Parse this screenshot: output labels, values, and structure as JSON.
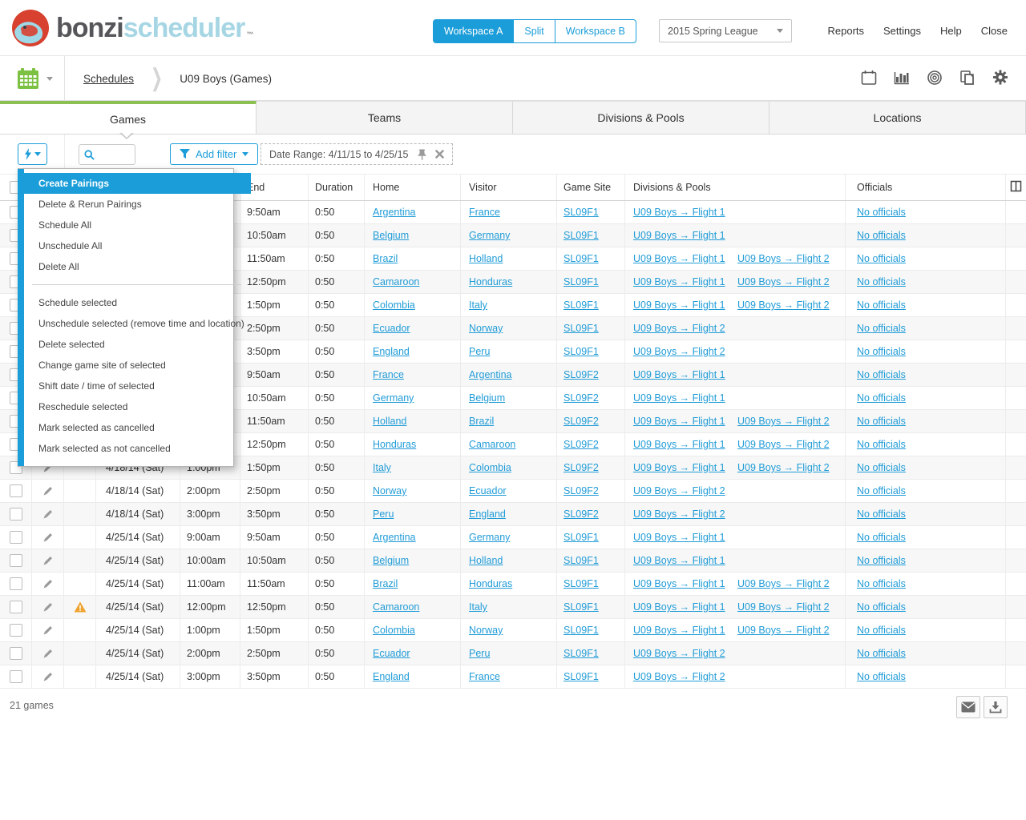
{
  "topbar": {
    "brand": {
      "dark": "bonzi",
      "light": "scheduler",
      "tm": "™"
    },
    "workspace": {
      "a": "Workspace A",
      "split": "Split",
      "b": "Workspace B",
      "active": "Workspace A"
    },
    "league": {
      "value": "2015 Spring League"
    },
    "nav": [
      "Reports",
      "Settings",
      "Help",
      "Close"
    ]
  },
  "toolbar": {
    "breadcrumb": [
      "Schedules",
      "U09 Boys (Games)"
    ]
  },
  "tabs": {
    "items": [
      "Games",
      "Teams",
      "Divisions & Pools",
      "Locations"
    ],
    "active": "Games"
  },
  "filterbar": {
    "search_value": "",
    "add_filter_label": "Add filter",
    "date_range_label": "Date Range: 4/11/15 to 4/25/15"
  },
  "menu": {
    "items": [
      {
        "label": "Create Pairings",
        "highlighted": true
      },
      {
        "label": "Delete & Rerun Pairings"
      },
      {
        "label": "Schedule All"
      },
      {
        "label": "Unschedule All"
      },
      {
        "label": "Delete All"
      },
      {
        "divider": true
      },
      {
        "label": "Schedule selected"
      },
      {
        "label": "Unschedule selected (remove time and location)"
      },
      {
        "label": "Delete selected"
      },
      {
        "label": "Change game site of selected"
      },
      {
        "label": "Shift date / time of selected"
      },
      {
        "label": "Reschedule selected"
      },
      {
        "label": "Mark selected as cancelled"
      },
      {
        "label": "Mark selected as not cancelled"
      }
    ]
  },
  "table": {
    "headers": {
      "date": "",
      "start": "",
      "end": "End",
      "duration": "Duration",
      "home": "Home",
      "visitor": "Visitor",
      "site": "Game Site",
      "divisions": "Divisions & Pools",
      "officials": "Officials"
    },
    "rows": [
      {
        "date": "",
        "start": "",
        "end": "9:50am",
        "duration": "0:50",
        "home": "Argentina",
        "visitor": "France",
        "site": "SL09F1",
        "div1": "U09 Boys → Flight 1",
        "div2": "",
        "officials": "No officials",
        "warning": false
      },
      {
        "date": "",
        "start": "",
        "end": "10:50am",
        "duration": "0:50",
        "home": "Belgium",
        "visitor": "Germany",
        "site": "SL09F1",
        "div1": "U09 Boys → Flight 1",
        "div2": "",
        "officials": "No officials",
        "warning": false
      },
      {
        "date": "",
        "start": "",
        "end": "11:50am",
        "duration": "0:50",
        "home": "Brazil",
        "visitor": "Holland",
        "site": "SL09F1",
        "div1": "U09 Boys → Flight 1",
        "div2": "U09 Boys → Flight 2",
        "officials": "No officials",
        "warning": false
      },
      {
        "date": "",
        "start": "",
        "end": "12:50pm",
        "duration": "0:50",
        "home": "Camaroon",
        "visitor": "Honduras",
        "site": "SL09F1",
        "div1": "U09 Boys → Flight 1",
        "div2": "U09 Boys → Flight 2",
        "officials": "No officials",
        "warning": false
      },
      {
        "date": "",
        "start": "",
        "end": "1:50pm",
        "duration": "0:50",
        "home": "Colombia",
        "visitor": "Italy",
        "site": "SL09F1",
        "div1": "U09 Boys → Flight 1",
        "div2": "U09 Boys → Flight 2",
        "officials": "No officials",
        "warning": false
      },
      {
        "date": "",
        "start": "",
        "end": "2:50pm",
        "duration": "0:50",
        "home": "Ecuador",
        "visitor": "Norway",
        "site": "SL09F1",
        "div1": "U09 Boys → Flight 2",
        "div2": "",
        "officials": "No officials",
        "warning": false
      },
      {
        "date": "",
        "start": "",
        "end": "3:50pm",
        "duration": "0:50",
        "home": "England",
        "visitor": "Peru",
        "site": "SL09F1",
        "div1": "U09 Boys → Flight 2",
        "div2": "",
        "officials": "No officials",
        "warning": false
      },
      {
        "date": "",
        "start": "",
        "end": "9:50am",
        "duration": "0:50",
        "home": "France",
        "visitor": "Argentina",
        "site": "SL09F2",
        "div1": "U09 Boys → Flight 1",
        "div2": "",
        "officials": "No officials",
        "warning": false
      },
      {
        "date": "",
        "start": "",
        "end": "10:50am",
        "duration": "0:50",
        "home": "Germany",
        "visitor": "Belgium",
        "site": "SL09F2",
        "div1": "U09 Boys → Flight 1",
        "div2": "",
        "officials": "No officials",
        "warning": false
      },
      {
        "date": "",
        "start": "",
        "end": "11:50am",
        "duration": "0:50",
        "home": "Holland",
        "visitor": "Brazil",
        "site": "SL09F2",
        "div1": "U09 Boys → Flight 1",
        "div2": "U09 Boys → Flight 2",
        "officials": "No officials",
        "warning": false
      },
      {
        "date": "",
        "start": "",
        "end": "12:50pm",
        "duration": "0:50",
        "home": "Honduras",
        "visitor": "Camaroon",
        "site": "SL09F2",
        "div1": "U09 Boys → Flight 1",
        "div2": "U09 Boys → Flight 2",
        "officials": "No officials",
        "warning": false
      },
      {
        "date": "4/18/14 (Sat)",
        "start": "1:00pm",
        "end": "1:50pm",
        "duration": "0:50",
        "home": "Italy",
        "visitor": "Colombia",
        "site": "SL09F2",
        "div1": "U09 Boys → Flight 1",
        "div2": "U09 Boys → Flight 2",
        "officials": "No officials",
        "warning": false
      },
      {
        "date": "4/18/14 (Sat)",
        "start": "2:00pm",
        "end": "2:50pm",
        "duration": "0:50",
        "home": "Norway",
        "visitor": "Ecuador",
        "site": "SL09F2",
        "div1": "U09 Boys → Flight 2",
        "div2": "",
        "officials": "No officials",
        "warning": false
      },
      {
        "date": "4/18/14 (Sat)",
        "start": "3:00pm",
        "end": "3:50pm",
        "duration": "0:50",
        "home": "Peru",
        "visitor": "England",
        "site": "SL09F2",
        "div1": "U09 Boys → Flight 2",
        "div2": "",
        "officials": "No officials",
        "warning": false
      },
      {
        "date": "4/25/14 (Sat)",
        "start": "9:00am",
        "end": "9:50am",
        "duration": "0:50",
        "home": "Argentina",
        "visitor": "Germany",
        "site": "SL09F1",
        "div1": "U09 Boys → Flight 1",
        "div2": "",
        "officials": "No officials",
        "warning": false
      },
      {
        "date": "4/25/14 (Sat)",
        "start": "10:00am",
        "end": "10:50am",
        "duration": "0:50",
        "home": "Belgium",
        "visitor": "Holland",
        "site": "SL09F1",
        "div1": "U09 Boys → Flight 1",
        "div2": "",
        "officials": "No officials",
        "warning": false
      },
      {
        "date": "4/25/14 (Sat)",
        "start": "11:00am",
        "end": "11:50am",
        "duration": "0:50",
        "home": "Brazil",
        "visitor": "Honduras",
        "site": "SL09F1",
        "div1": "U09 Boys → Flight 1",
        "div2": "U09 Boys → Flight 2",
        "officials": "No officials",
        "warning": false
      },
      {
        "date": "4/25/14 (Sat)",
        "start": "12:00pm",
        "end": "12:50pm",
        "duration": "0:50",
        "home": "Camaroon",
        "visitor": "Italy",
        "site": "SL09F1",
        "div1": "U09 Boys → Flight 1",
        "div2": "U09 Boys → Flight 2",
        "officials": "No officials",
        "warning": true
      },
      {
        "date": "4/25/14 (Sat)",
        "start": "1:00pm",
        "end": "1:50pm",
        "duration": "0:50",
        "home": "Colombia",
        "visitor": "Norway",
        "site": "SL09F1",
        "div1": "U09 Boys → Flight 1",
        "div2": "U09 Boys → Flight 2",
        "officials": "No officials",
        "warning": false
      },
      {
        "date": "4/25/14 (Sat)",
        "start": "2:00pm",
        "end": "2:50pm",
        "duration": "0:50",
        "home": "Ecuador",
        "visitor": "Peru",
        "site": "SL09F1",
        "div1": "U09 Boys → Flight 2",
        "div2": "",
        "officials": "No officials",
        "warning": false
      },
      {
        "date": "4/25/14 (Sat)",
        "start": "3:00pm",
        "end": "3:50pm",
        "duration": "0:50",
        "home": "England",
        "visitor": "France",
        "site": "SL09F1",
        "div1": "U09 Boys → Flight 2",
        "div2": "",
        "officials": "No officials",
        "warning": false
      }
    ]
  },
  "footer": {
    "count": "21 games"
  },
  "colors": {
    "accent_blue": "#1b9dd9",
    "link_blue": "#219cd7",
    "green": "#8cc152",
    "calendar_green": "#7cc142",
    "warning_orange": "#f0a32e",
    "logo_red": "#d8402f",
    "logo_blue": "#9fd8e6"
  }
}
